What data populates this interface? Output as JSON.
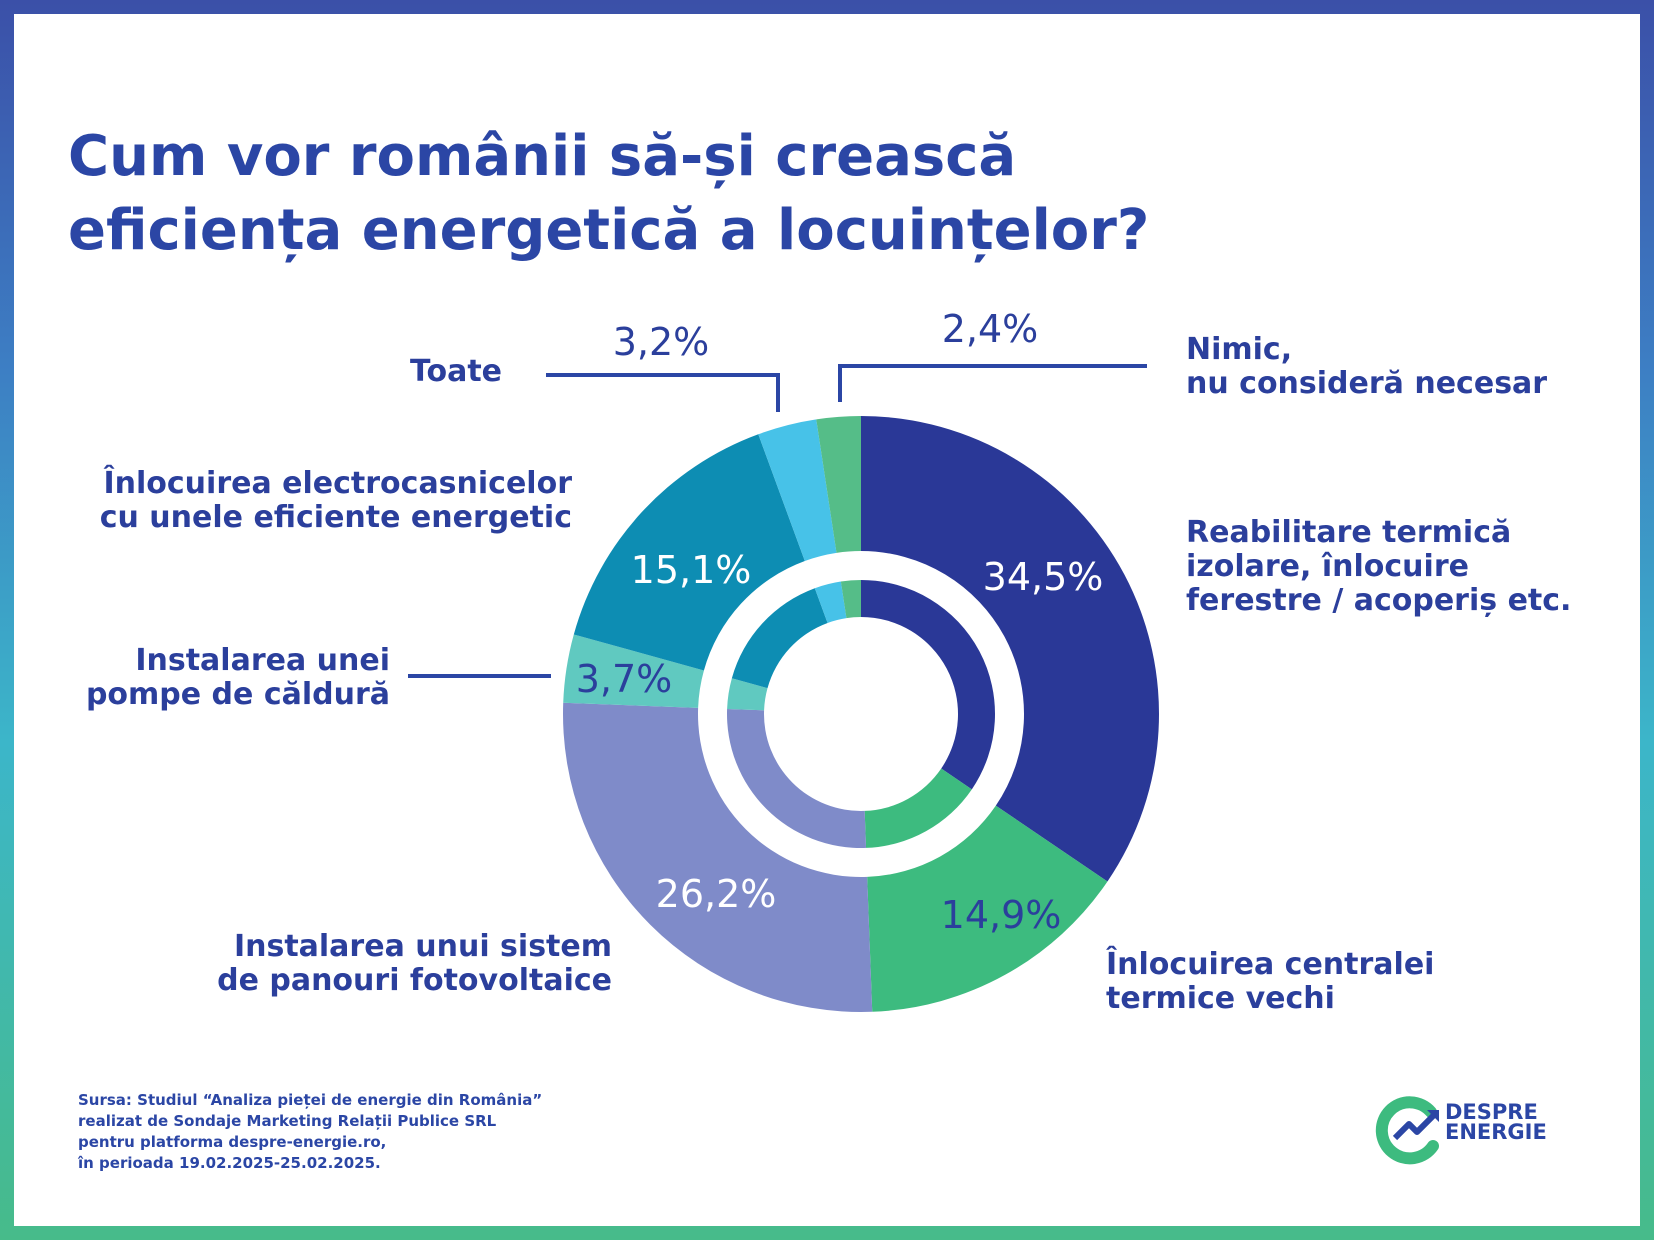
{
  "title": {
    "line1": "Cum vor românii să-și crească",
    "line2": "eficiența energetică a locuințelor?"
  },
  "chart_data": {
    "type": "pie",
    "variant": "donut",
    "unit": "%",
    "slices": [
      {
        "label": "Reabilitare termică izolare, înlocuire ferestre / acoperiș etc.",
        "value": 34.5,
        "display": "34,5%",
        "color": "#2a3897"
      },
      {
        "label": "Înlocuirea centralei termice vechi",
        "value": 14.9,
        "display": "14,9%",
        "color": "#3dbb7f"
      },
      {
        "label": "Instalarea unui sistem de panouri fotovoltaice",
        "value": 26.2,
        "display": "26,2%",
        "color": "#7f8bc9"
      },
      {
        "label": "Instalarea unei pompe de căldură",
        "value": 3.7,
        "display": "3,7%",
        "color": "#60c9c0"
      },
      {
        "label": "Înlocuirea electrocasnicelor cu unele eficiente energetic",
        "value": 15.1,
        "display": "15,1%",
        "color": "#0d8db3"
      },
      {
        "label": "Toate",
        "value": 3.2,
        "display": "3,2%",
        "color": "#47c2e8"
      },
      {
        "label": "Nimic, nu consideră necesar",
        "value": 2.4,
        "display": "2,4%",
        "color": "#55bd88"
      }
    ]
  },
  "labels": {
    "reabilitare": {
      "l1": "Reabilitare termică",
      "l2": "izolare, înlocuire",
      "l3": "ferestre / acoperiș etc."
    },
    "centrala": {
      "l1": "Înlocuirea centralei",
      "l2": "termice vechi"
    },
    "panouri": {
      "l1": "Instalarea unui sistem",
      "l2": "de panouri fotovoltaice"
    },
    "pompa": {
      "l1": "Instalarea unei",
      "l2": "pompe de căldură"
    },
    "electrocasnice": {
      "l1": "Înlocuirea electrocasnicelor",
      "l2": "cu unele eficiente energetic"
    },
    "toate": {
      "l1": "Toate"
    },
    "nimic": {
      "l1": "Nimic,",
      "l2": "nu consideră necesar"
    }
  },
  "source": {
    "l1": "Sursa: Studiul “Analiza pieței de energie din România”",
    "l2": "realizat de Sondaje Marketing Relații Publice SRL",
    "l3": "pentru platforma despre-energie.ro,",
    "l4": "în perioada 19.02.2025-25.02.2025."
  },
  "logo": {
    "l1": "DESPRE",
    "l2": "ENERGIE"
  },
  "colors": {
    "title": "#2b46a5",
    "label": "#2b3f9c",
    "frame_top": "#3b50a8",
    "frame_bottom": "#47bb8a"
  }
}
